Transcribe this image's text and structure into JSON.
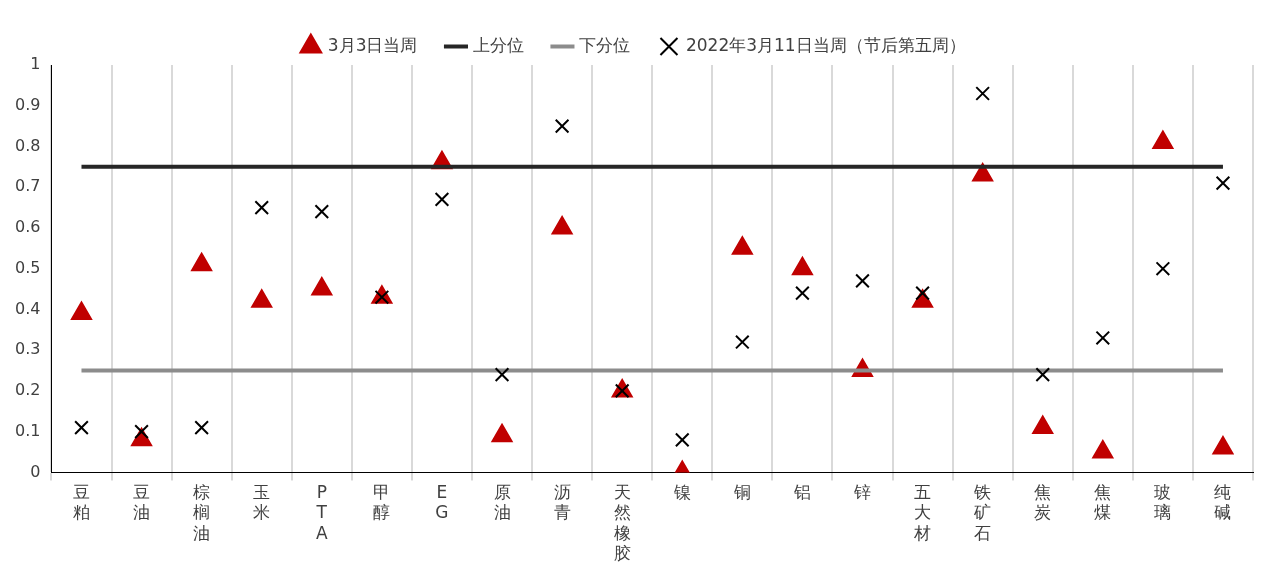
{
  "chart_data": {
    "type": "scatter",
    "categories": [
      "豆粕",
      "豆油",
      "棕榈油",
      "玉米",
      "PTA",
      "甲醇",
      "EG",
      "原油",
      "沥青",
      "天然橡胶",
      "镍",
      "铜",
      "铝",
      "锌",
      "五大材",
      "铁矿石",
      "焦炭",
      "焦煤",
      "玻璃",
      "纯碱"
    ],
    "series": [
      {
        "name": "3月3日当周",
        "marker": "triangle",
        "color": "#c00000",
        "values": [
          0.39,
          0.08,
          0.51,
          0.42,
          0.45,
          0.43,
          0.76,
          0.09,
          0.6,
          0.2,
          0,
          0.55,
          0.5,
          0.25,
          0.42,
          0.73,
          0.11,
          0.05,
          0.81,
          0.06
        ]
      },
      {
        "name": "上分位",
        "type": "line",
        "marker": "none",
        "color": "#262626",
        "values": [
          0.75,
          0.75,
          0.75,
          0.75,
          0.75,
          0.75,
          0.75,
          0.75,
          0.75,
          0.75,
          0.75,
          0.75,
          0.75,
          0.75,
          0.75,
          0.75,
          0.75,
          0.75,
          0.75,
          0.75
        ]
      },
      {
        "name": "下分位",
        "type": "line",
        "marker": "none",
        "color": "#8c8c8c",
        "values": [
          0.25,
          0.25,
          0.25,
          0.25,
          0.25,
          0.25,
          0.25,
          0.25,
          0.25,
          0.25,
          0.25,
          0.25,
          0.25,
          0.25,
          0.25,
          0.25,
          0.25,
          0.25,
          0.25,
          0.25
        ]
      },
      {
        "name": "2022年3月11日当周（节后第五周）",
        "marker": "cross",
        "color": "#000000",
        "values": [
          0.11,
          0.1,
          0.11,
          0.65,
          0.64,
          0.43,
          0.67,
          0.24,
          0.85,
          0.2,
          0.08,
          0.32,
          0.44,
          0.47,
          0.44,
          0.93,
          0.24,
          0.33,
          0.5,
          0.71
        ]
      }
    ],
    "ylim": [
      0,
      1
    ],
    "yticks": [
      0,
      0.1,
      0.2,
      0.3,
      0.4,
      0.5,
      0.6,
      0.7,
      0.8,
      0.9,
      1
    ],
    "grid": "x",
    "legend": "top"
  }
}
